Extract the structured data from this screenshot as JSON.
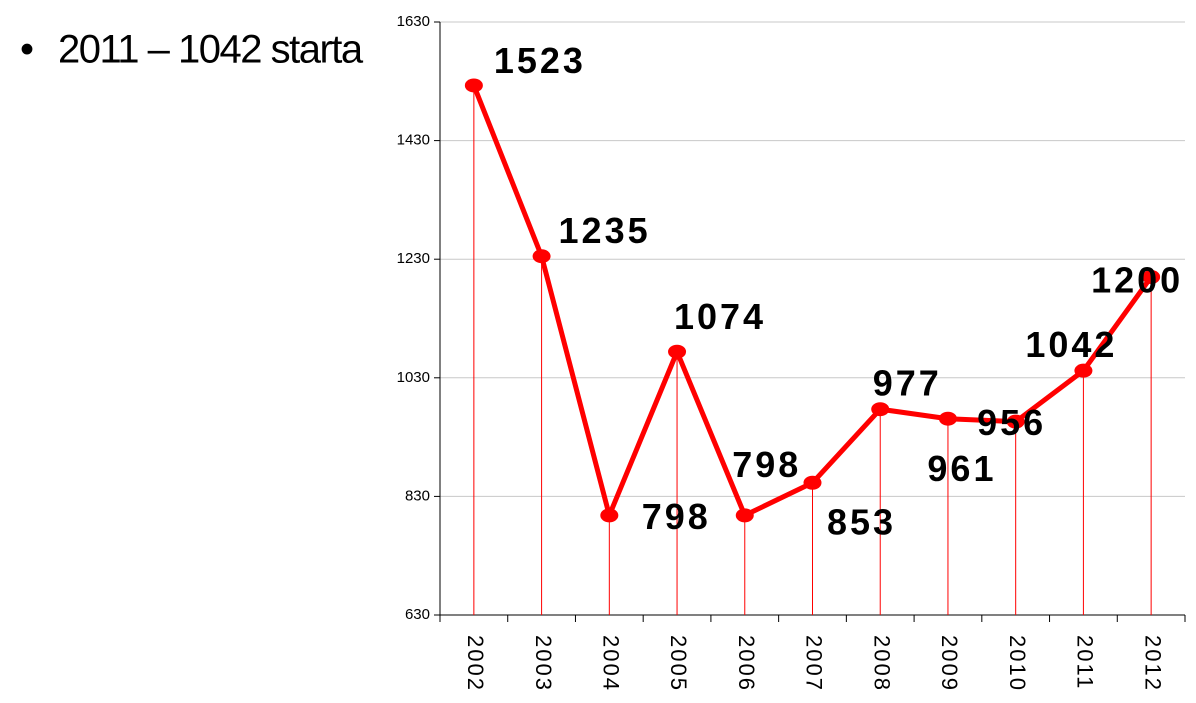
{
  "bullet": "2011 – 1042 starta",
  "chart_data": {
    "type": "line",
    "categories": [
      "2002",
      "2003",
      "2004",
      "2005",
      "2006",
      "2007",
      "2008",
      "2009",
      "2010",
      "2011",
      "2012"
    ],
    "values": [
      1523,
      1235,
      798,
      1074,
      798,
      853,
      977,
      961,
      956,
      1042,
      1200
    ],
    "color": "#ff0000",
    "ylim": [
      630,
      1630
    ],
    "yticks": [
      630,
      830,
      1030,
      1230,
      1430,
      1630
    ],
    "grid": true
  }
}
